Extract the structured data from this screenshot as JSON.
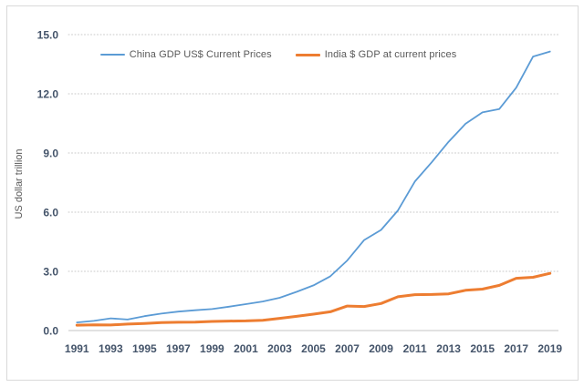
{
  "chart": {
    "legend": [
      {
        "label": "China GDP US$ Current Prices",
        "color": "#5B9BD5",
        "swatch_height": 2
      },
      {
        "label": "India $ GDP at current prices",
        "color": "#ED7D31",
        "swatch_height": 3
      }
    ],
    "colors": {
      "china_line": "#5B9BD5",
      "india_line": "#ED7D31",
      "gridline": "#c9c9c9",
      "axis_line": "#d9d9d9",
      "tick_label": "#44546A",
      "secondary_text": "#595959",
      "border": "#d9d9d9"
    }
  },
  "chart_data": {
    "type": "line",
    "title": "",
    "xlabel": "",
    "ylabel": "US dollar trillion",
    "x": [
      1991,
      1992,
      1993,
      1994,
      1995,
      1996,
      1997,
      1998,
      1999,
      2000,
      2001,
      2002,
      2003,
      2004,
      2005,
      2006,
      2007,
      2008,
      2009,
      2010,
      2011,
      2012,
      2013,
      2014,
      2015,
      2016,
      2017,
      2018,
      2019
    ],
    "series": [
      {
        "name": "China GDP US$ Current Prices",
        "color": "#5B9BD5",
        "stroke_width": 1.8,
        "values": [
          0.41,
          0.49,
          0.62,
          0.56,
          0.73,
          0.86,
          0.96,
          1.03,
          1.09,
          1.21,
          1.34,
          1.47,
          1.66,
          1.96,
          2.29,
          2.75,
          3.55,
          4.59,
          5.1,
          6.09,
          7.55,
          8.53,
          9.57,
          10.48,
          11.06,
          11.23,
          12.31,
          13.89,
          14.14
        ]
      },
      {
        "name": "India $ GDP at current prices",
        "color": "#ED7D31",
        "stroke_width": 3,
        "values": [
          0.27,
          0.29,
          0.28,
          0.33,
          0.36,
          0.4,
          0.42,
          0.43,
          0.46,
          0.48,
          0.49,
          0.52,
          0.62,
          0.72,
          0.83,
          0.95,
          1.24,
          1.22,
          1.37,
          1.71,
          1.82,
          1.83,
          1.86,
          2.04,
          2.1,
          2.29,
          2.65,
          2.7,
          2.9
        ]
      }
    ],
    "ylim": [
      0,
      15
    ],
    "yticks": [
      0,
      3,
      6,
      9,
      12,
      15
    ],
    "ytick_labels": [
      "0.0",
      "3.0",
      "6.0",
      "9.0",
      "12.0",
      "15.0"
    ],
    "xtick_labels": [
      "1991",
      "1993",
      "1995",
      "1997",
      "1999",
      "2001",
      "2003",
      "2005",
      "2007",
      "2009",
      "2011",
      "2013",
      "2015",
      "2017",
      "2019"
    ],
    "grid": "horizontal-dotted",
    "legend_position": "top-center"
  }
}
